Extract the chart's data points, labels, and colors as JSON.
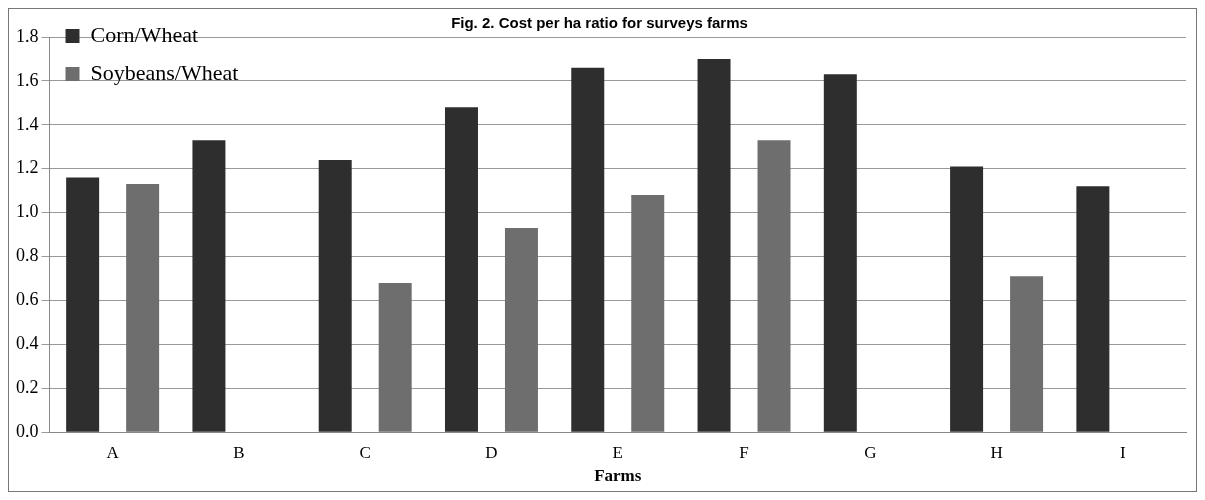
{
  "chart_data": {
    "type": "bar",
    "title": "Fig. 2. Cost per ha ratio for surveys farms",
    "xlabel": "Farms",
    "categories": [
      "A",
      "B",
      "C",
      "D",
      "E",
      "F",
      "G",
      "H",
      "I"
    ],
    "series": [
      {
        "name": "Corn/Wheat",
        "color": "#2e2e2e",
        "values": [
          1.16,
          1.33,
          1.24,
          1.48,
          1.66,
          1.7,
          1.63,
          1.21,
          1.12
        ]
      },
      {
        "name": "Soybeans/Wheat",
        "color": "#6e6e6e",
        "values": [
          1.13,
          null,
          0.68,
          0.93,
          1.08,
          1.33,
          null,
          0.71,
          null
        ]
      }
    ],
    "ylim": [
      0,
      1.8
    ],
    "yticks": [
      {
        "value": 0,
        "label": "0.0"
      },
      {
        "value": 0.2,
        "label": "0.2"
      },
      {
        "value": 0.4,
        "label": "0.4"
      },
      {
        "value": 0.6,
        "label": "0.6"
      },
      {
        "value": 0.8,
        "label": "0.8"
      },
      {
        "value": 1,
        "label": "1.0"
      },
      {
        "value": 1.2,
        "label": "1.2"
      },
      {
        "value": 1.4,
        "label": "1.4"
      },
      {
        "value": 1.6,
        "label": "1.6"
      },
      {
        "value": 1.8,
        "label": "1.8"
      }
    ],
    "grid": "y",
    "legend": "top left"
  }
}
